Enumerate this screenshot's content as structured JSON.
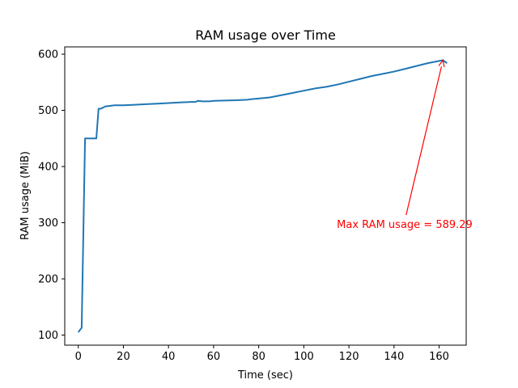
{
  "chart_data": {
    "type": "line",
    "title": "RAM usage over Time",
    "xlabel": "Time (sec)",
    "ylabel": "RAM usage (MiB)",
    "xlim": [
      -6,
      172
    ],
    "ylim": [
      82,
      613
    ],
    "xticks": [
      0,
      20,
      40,
      60,
      80,
      100,
      120,
      140,
      160
    ],
    "yticks": [
      100,
      200,
      300,
      400,
      500,
      600
    ],
    "grid": false,
    "line_color": "#1f77b4",
    "annotation_color": "#ff0000",
    "series": [
      {
        "x": [
          0,
          1.5,
          3,
          5,
          8,
          9,
          10,
          12,
          14,
          16,
          20,
          25,
          30,
          35,
          40,
          45,
          50,
          52,
          53,
          55,
          58,
          60,
          65,
          70,
          75,
          77,
          80,
          85,
          90,
          95,
          100,
          105,
          110,
          115,
          120,
          125,
          130,
          135,
          140,
          145,
          150,
          155,
          160,
          161.7,
          163.5
        ],
        "values": [
          105,
          113,
          450,
          450,
          450,
          503,
          503,
          507,
          508,
          509,
          509,
          510,
          511,
          512,
          513,
          514,
          515,
          515,
          517,
          516,
          516,
          517,
          517.5,
          518,
          519,
          520,
          521,
          523,
          527,
          531,
          535,
          539,
          542,
          546,
          551,
          556,
          561,
          565,
          569,
          574,
          579,
          584,
          588,
          589.29,
          584
        ]
      }
    ],
    "annotation": {
      "text": "Max RAM usage = 589.29",
      "point": [
        161.7,
        589.29
      ],
      "text_position": [
        145,
        300
      ]
    }
  }
}
